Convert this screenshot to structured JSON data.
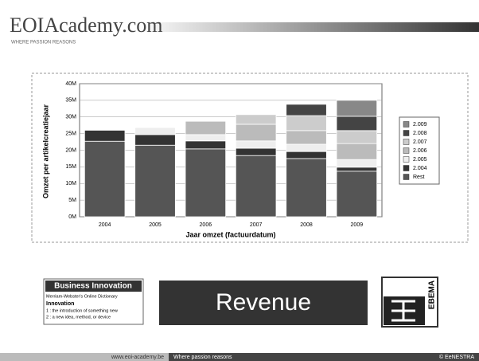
{
  "header": {
    "logo": "EOIAcademy.com",
    "tagline": "WHERE PASSION REASONS"
  },
  "chart_data": {
    "type": "bar",
    "stacked": true,
    "ylabel": "Omzet per artikelcreatiejaar",
    "xlabel": "Jaar omzet (factuurdatum)",
    "categories": [
      "2004",
      "2005",
      "2006",
      "2007",
      "2008",
      "2009"
    ],
    "series": [
      {
        "name": "Rest",
        "color": "#555555",
        "values": [
          22.7,
          21.5,
          20.4,
          18.4,
          17.5,
          13.7
        ]
      },
      {
        "name": "2.004",
        "color": "#333333",
        "values": [
          3.3,
          3.2,
          2.4,
          2.2,
          2.1,
          1.2
        ]
      },
      {
        "name": "2.005",
        "color": "#eeeeee",
        "values": [
          null,
          2.1,
          1.9,
          2.2,
          2.2,
          2.3
        ]
      },
      {
        "name": "2.006",
        "color": "#bbbbbb",
        "values": [
          null,
          null,
          4.0,
          5.0,
          4.1,
          4.8
        ]
      },
      {
        "name": "2.007",
        "color": "#cccccc",
        "values": [
          null,
          null,
          null,
          2.9,
          4.5,
          3.9
        ]
      },
      {
        "name": "2.008",
        "color": "#444444",
        "values": [
          null,
          null,
          null,
          null,
          3.4,
          4.3
        ]
      },
      {
        "name": "2.009",
        "color": "#888888",
        "values": [
          null,
          null,
          null,
          null,
          null,
          4.8
        ]
      }
    ],
    "ylim": [
      0,
      40
    ],
    "yticks": [
      {
        "value": 0,
        "label": "0M"
      },
      {
        "value": 5,
        "label": "5M"
      },
      {
        "value": 10,
        "label": "10M"
      },
      {
        "value": 15,
        "label": "15M"
      },
      {
        "value": 20,
        "label": "20M"
      },
      {
        "value": 25,
        "label": "25M"
      },
      {
        "value": 30,
        "label": "30M"
      },
      {
        "value": 35,
        "label": "35M"
      },
      {
        "value": 40,
        "label": "40M"
      }
    ],
    "grid": true,
    "legend": "right"
  },
  "definition": {
    "title": "Business Innovation",
    "source": "Merriam-Webster's Online Dictionary",
    "term": "Innovation",
    "lines": [
      "1 : the introduction of something new",
      "2 : a new idea, method, or device"
    ]
  },
  "banner": "Revenue",
  "sponsor": "EBEMA",
  "footer": {
    "url": "www.eoi-academy.be",
    "slogan": "Where passion reasons",
    "copyright": "© EeNESTRA"
  }
}
